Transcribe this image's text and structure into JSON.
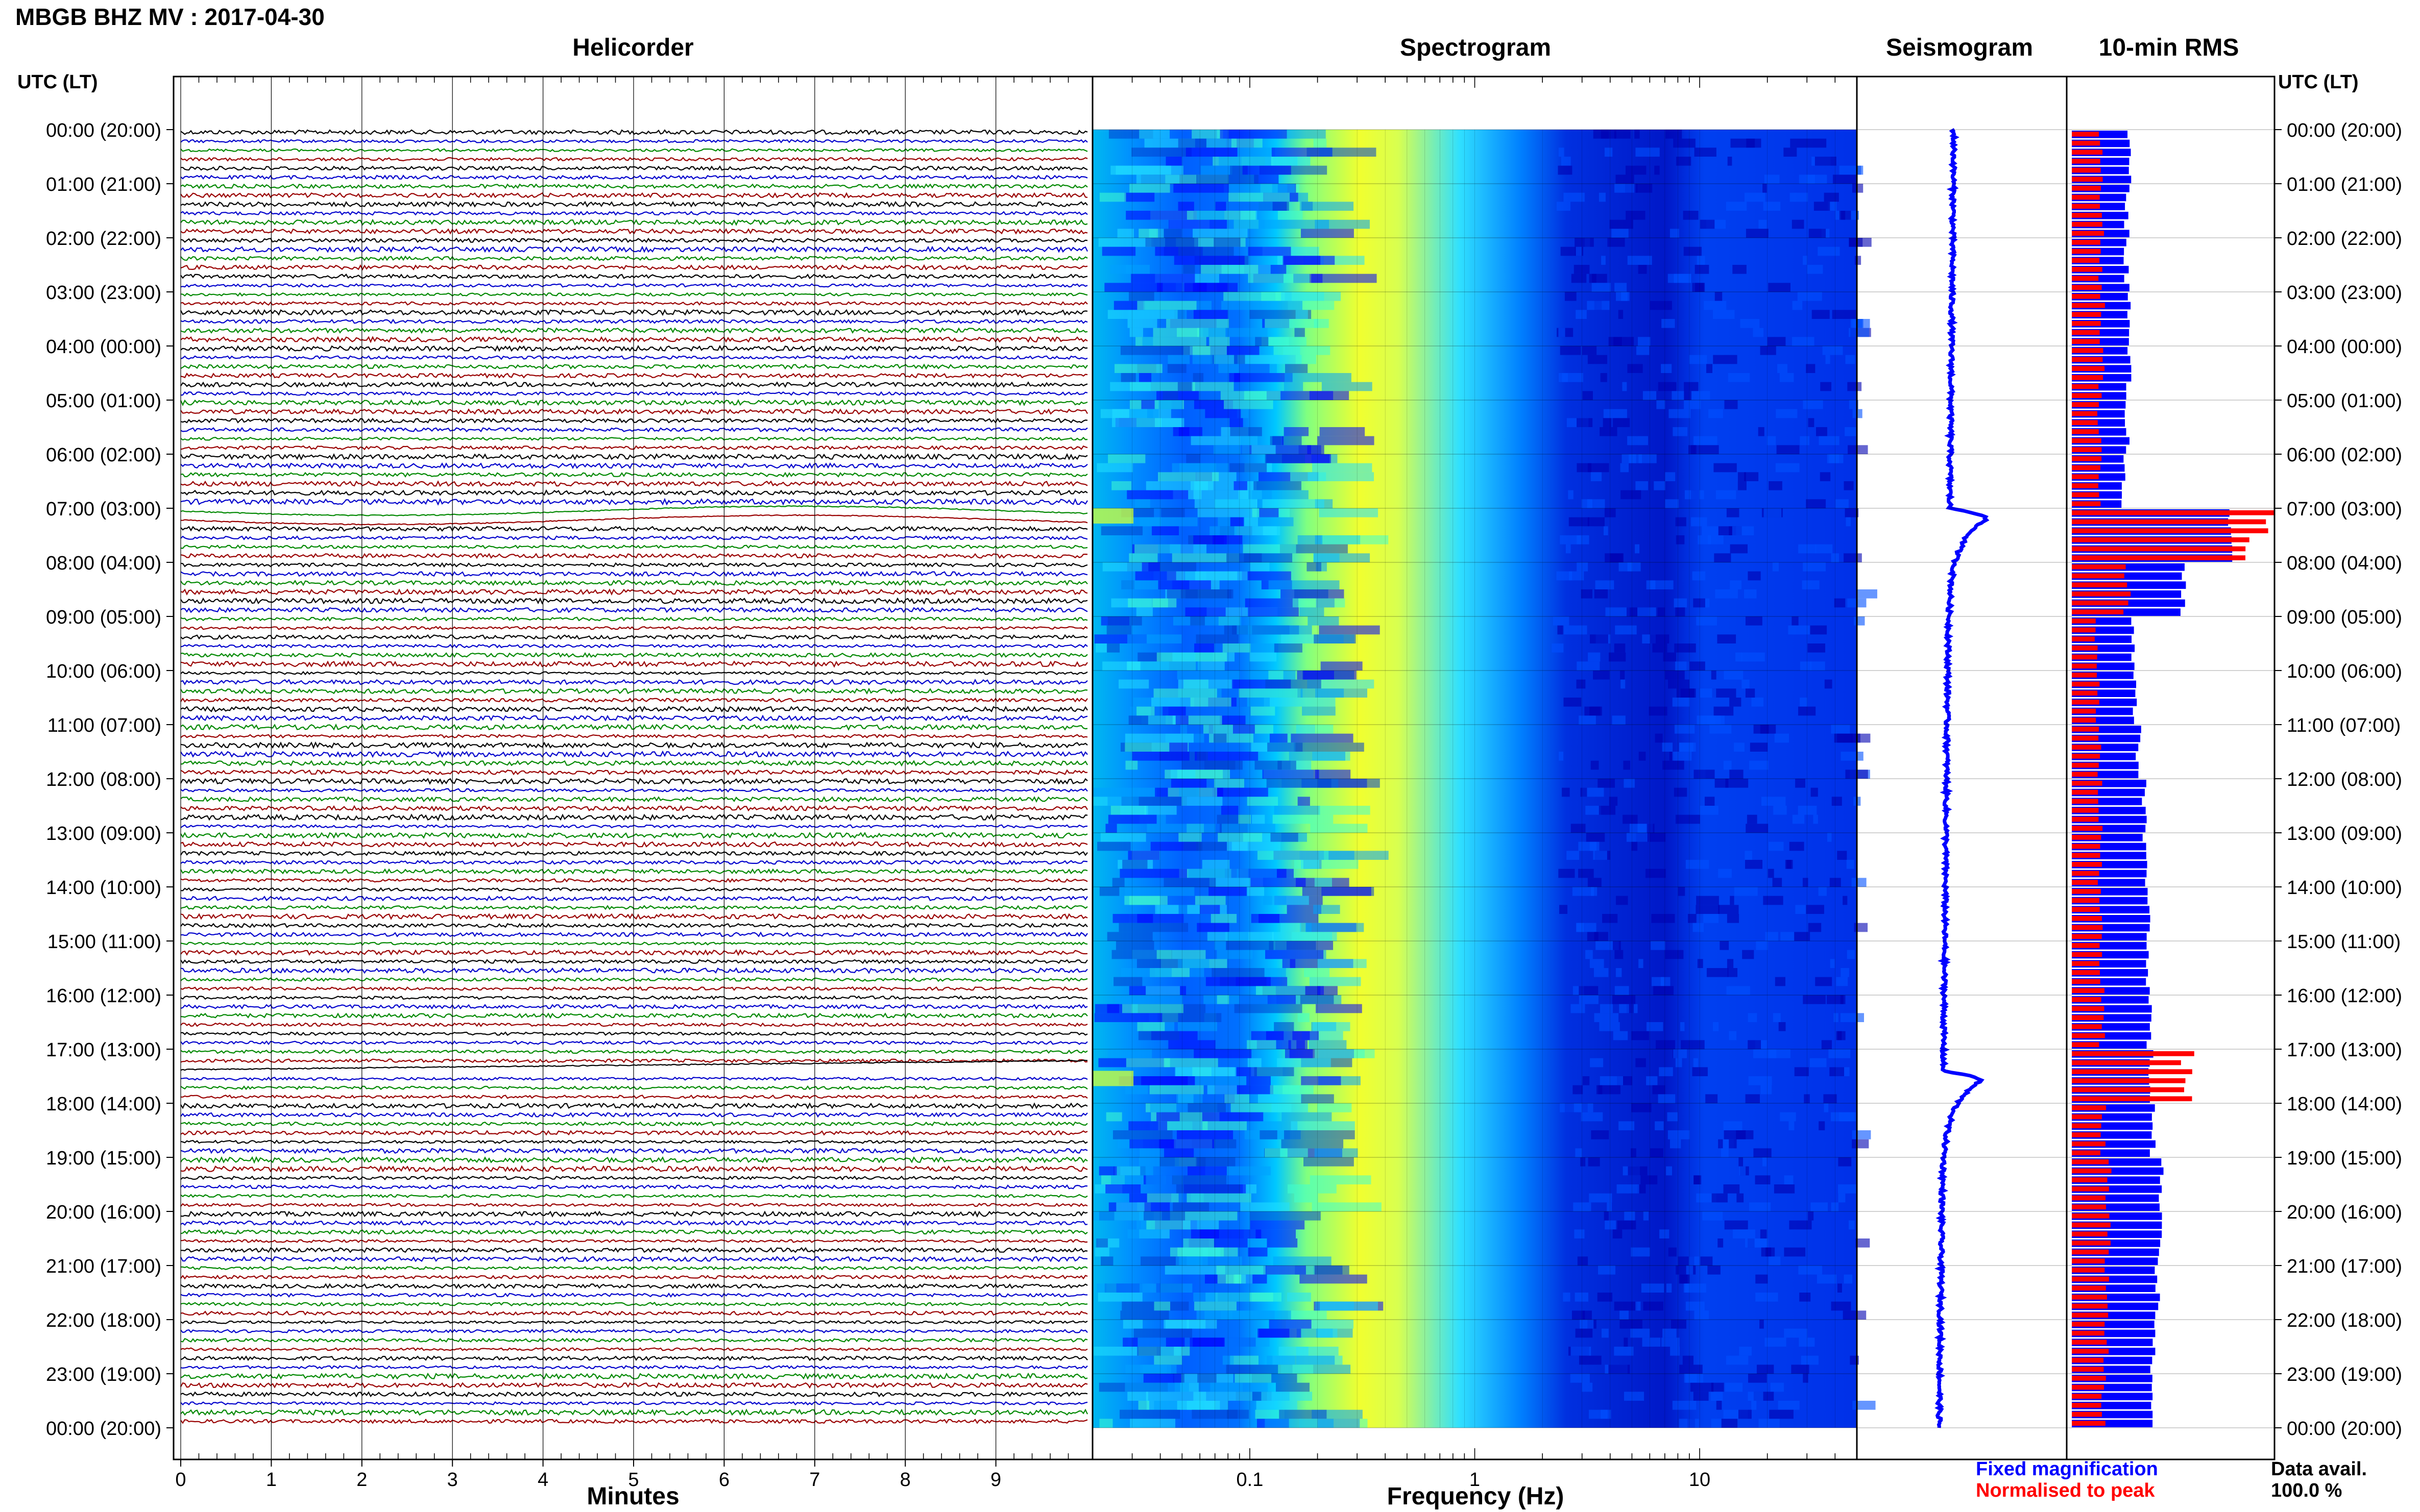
{
  "header": {
    "title": "MBGB BHZ MV : 2017-04-30",
    "utc_label_left": "UTC (LT)",
    "utc_label_right": "UTC (LT)"
  },
  "panels": {
    "helicorder": "Helicorder",
    "spectrogram": "Spectrogram",
    "seismogram": "Seismogram",
    "rms": "10-min RMS"
  },
  "axes": {
    "minutes_label": "Minutes",
    "frequency_label": "Frequency (Hz)"
  },
  "legend": {
    "fixed": "Fixed magnification",
    "normalised": "Normalised to peak",
    "fixed_color": "#0000ff",
    "normalised_color": "#ff0000"
  },
  "availability": {
    "label": "Data avail.",
    "value": "100.0 %"
  },
  "chart_data": [
    {
      "type": "line",
      "name": "helicorder",
      "x_ticks": [
        "0",
        "1",
        "2",
        "3",
        "4",
        "5",
        "6",
        "7",
        "8",
        "9"
      ],
      "xlim": [
        0,
        10
      ],
      "xlabel": "Minutes",
      "trace_colors": [
        "#000000",
        "#0000cc",
        "#008800",
        "#990000"
      ],
      "time_labels": [
        "00:00 (20:00)",
        "01:00 (21:00)",
        "02:00 (22:00)",
        "03:00 (23:00)",
        "04:00 (00:00)",
        "05:00 (01:00)",
        "06:00 (02:00)",
        "07:00 (03:00)",
        "08:00 (04:00)",
        "09:00 (05:00)",
        "10:00 (06:00)",
        "11:00 (07:00)",
        "12:00 (08:00)",
        "13:00 (09:00)",
        "14:00 (10:00)",
        "15:00 (11:00)",
        "16:00 (12:00)",
        "17:00 (13:00)",
        "18:00 (14:00)",
        "19:00 (15:00)",
        "20:00 (16:00)",
        "21:00 (17:00)",
        "22:00 (18:00)",
        "23:00 (19:00)",
        "00:00 (20:00)"
      ]
    },
    {
      "type": "heatmap",
      "name": "spectrogram",
      "x_scale": "log",
      "x_ticks": [
        "0.1",
        "1",
        "10"
      ],
      "xlim": [
        0.02,
        50
      ],
      "xlabel": "Frequency (Hz)",
      "colormap": [
        "#0000a0",
        "#0000ff",
        "#0090ff",
        "#20e8ff",
        "#a0ff60",
        "#ffff00"
      ]
    },
    {
      "type": "line",
      "name": "seismogram",
      "color": "#0000ff",
      "events_utc_hours": [
        7.0,
        17.4
      ]
    },
    {
      "type": "bar",
      "name": "10-min RMS",
      "categories_hours": [
        0,
        1,
        2,
        3,
        4,
        5,
        6,
        7,
        8,
        9,
        10,
        11,
        12,
        13,
        14,
        15,
        16,
        17,
        18,
        19,
        20,
        21,
        22,
        23
      ],
      "fixed_magnification_rel": [
        0.28,
        0.27,
        0.27,
        0.28,
        0.28,
        0.27,
        0.26,
        0.78,
        0.55,
        0.3,
        0.31,
        0.33,
        0.36,
        0.36,
        0.38,
        0.38,
        0.38,
        0.39,
        0.4,
        0.44,
        0.43,
        0.42,
        0.4,
        0.4
      ],
      "normalised_rel": [
        0.15,
        0.16,
        0.16,
        0.16,
        0.16,
        0.15,
        0.15,
        1.0,
        0.3,
        0.13,
        0.14,
        0.15,
        0.15,
        0.15,
        0.16,
        0.16,
        0.16,
        0.6,
        0.17,
        0.19,
        0.19,
        0.19,
        0.18,
        0.17
      ],
      "series": [
        {
          "name": "Fixed magnification",
          "color": "#0000ff"
        },
        {
          "name": "Normalised to peak",
          "color": "#ff0000"
        }
      ]
    }
  ]
}
